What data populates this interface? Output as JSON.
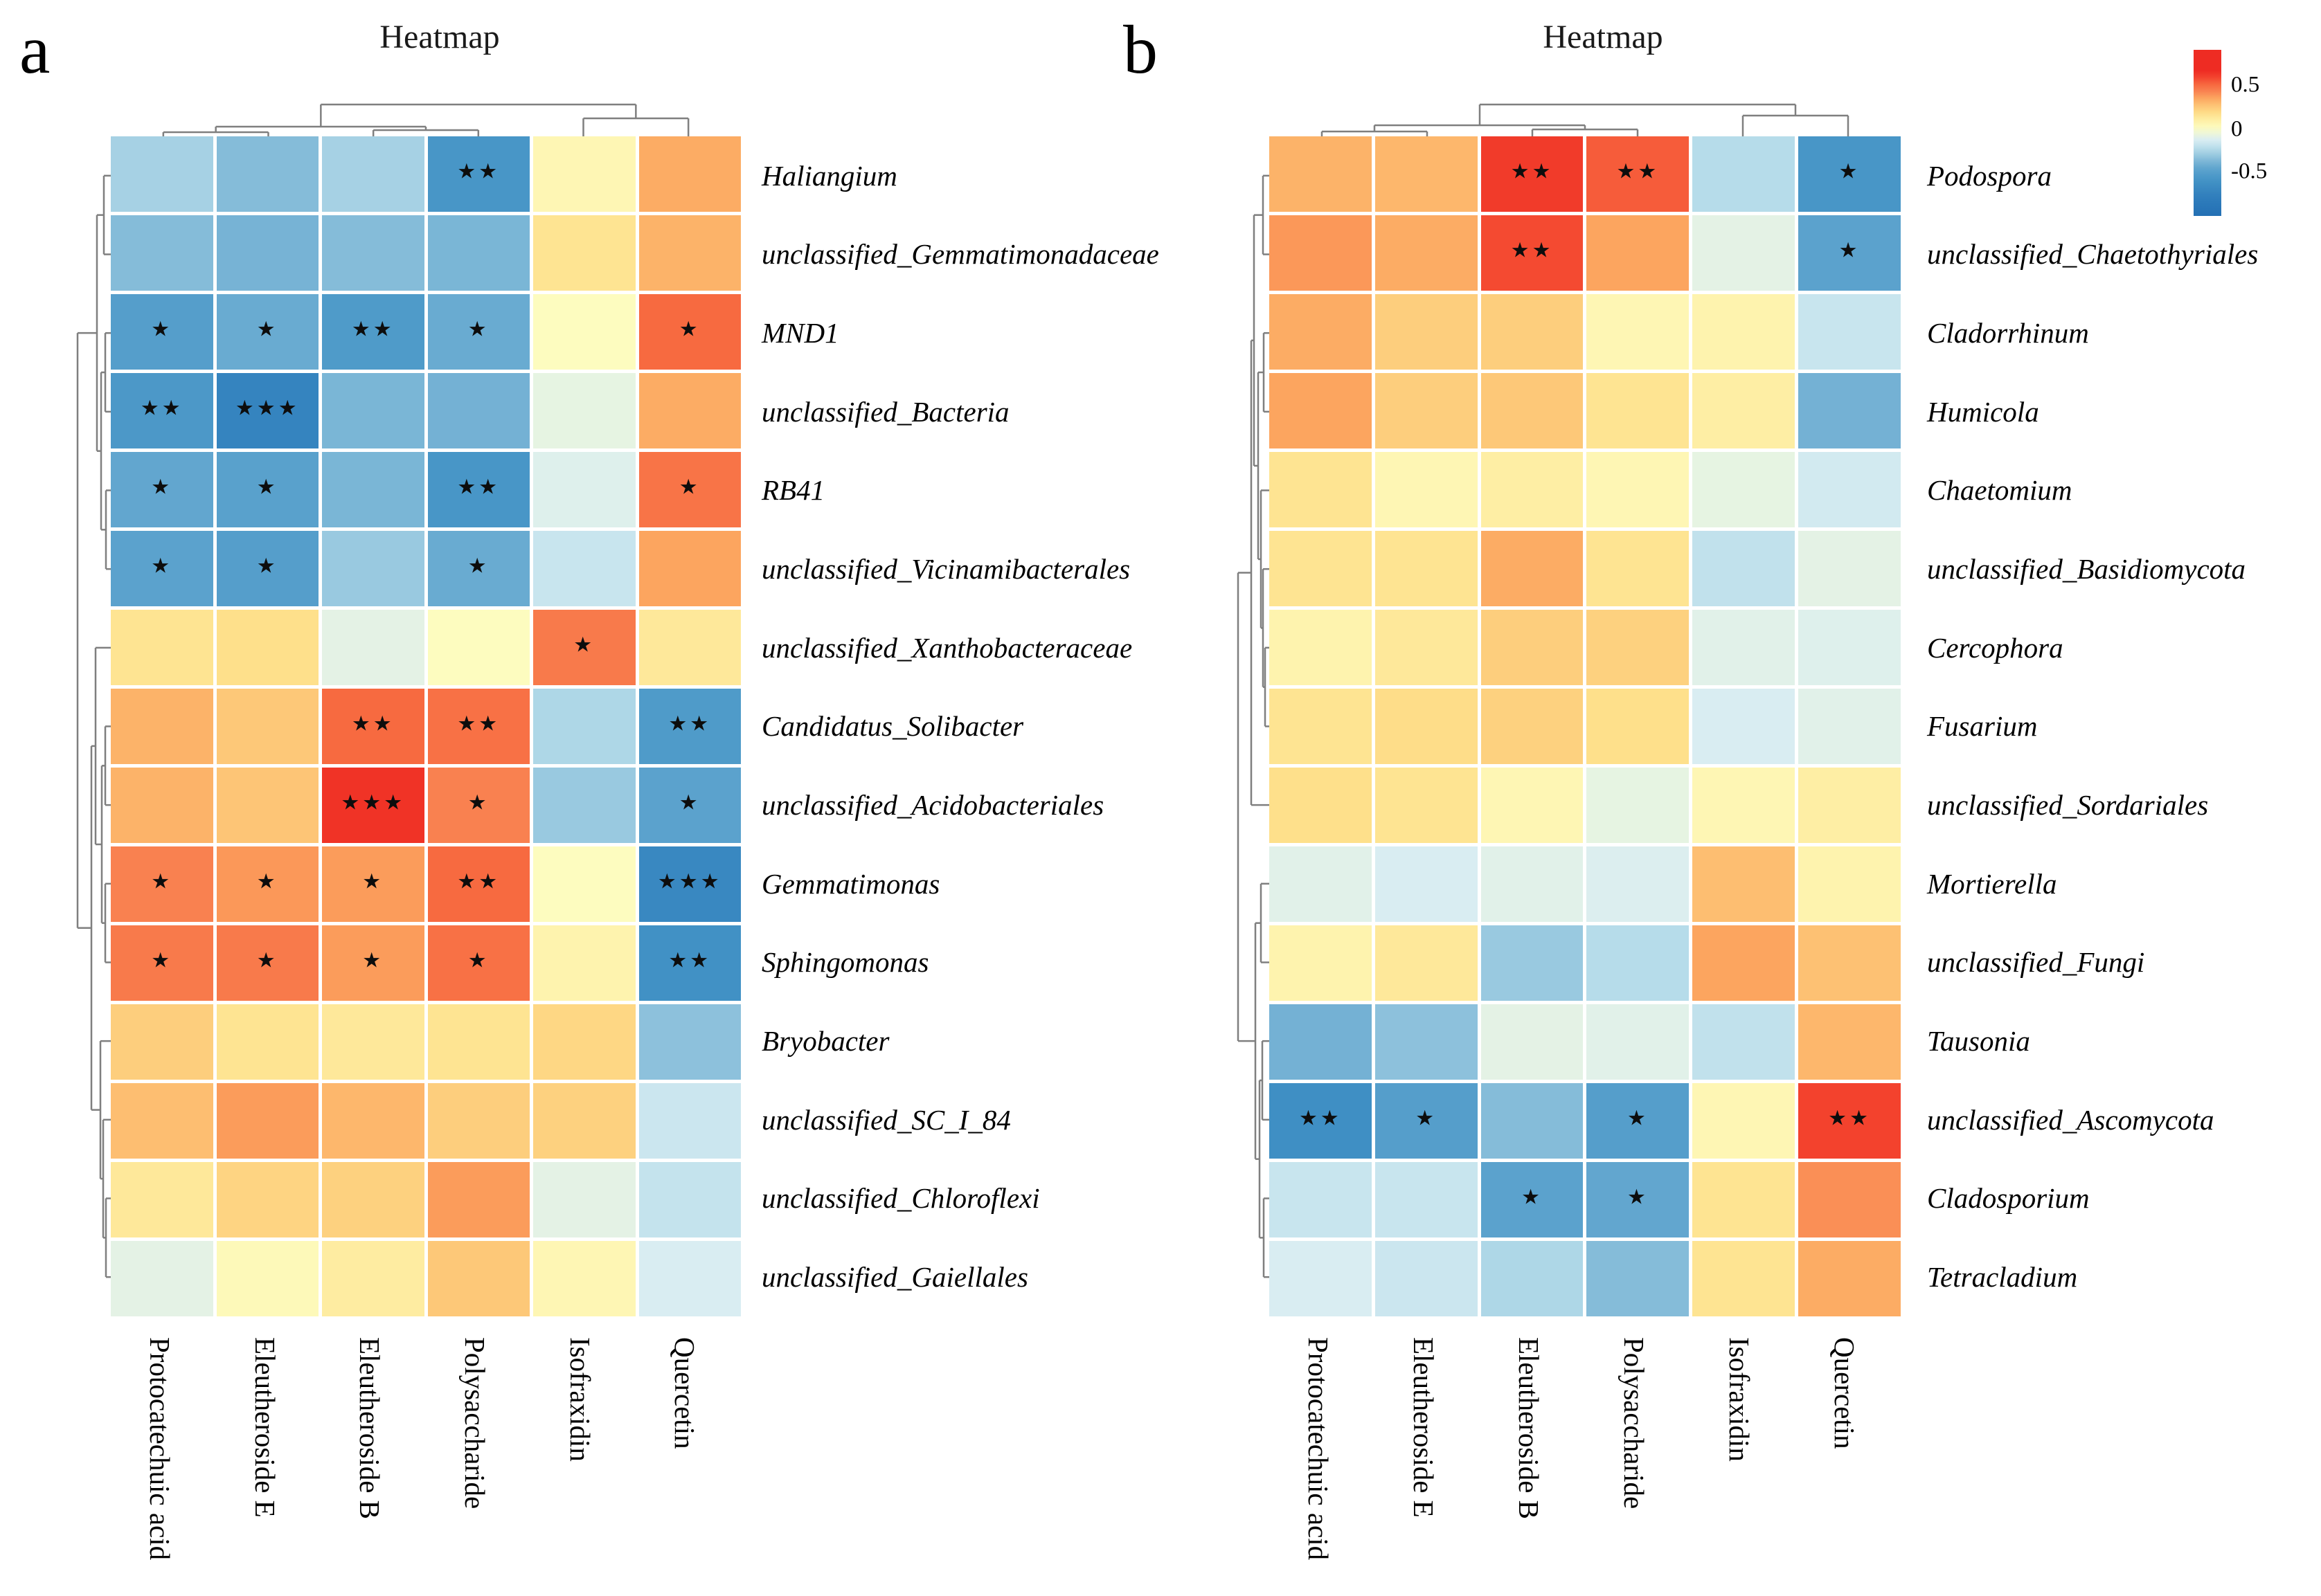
{
  "figure": {
    "panel_a_label": "a",
    "panel_b_label": "b"
  },
  "legend": {
    "ticks": [
      {
        "label": "0.5",
        "value": 0.5
      },
      {
        "label": "0",
        "value": 0
      },
      {
        "label": "-0.5",
        "value": -0.5
      }
    ],
    "vmin": -0.95,
    "vmax": 0.95
  },
  "colormap": [
    [
      -0.95,
      "#2470b4"
    ],
    [
      -0.75,
      "#2e7cbb"
    ],
    [
      -0.55,
      "#4292c5"
    ],
    [
      -0.42,
      "#5ba2cd"
    ],
    [
      -0.3,
      "#85bcd9"
    ],
    [
      -0.18,
      "#b6dcea"
    ],
    [
      -0.08,
      "#d9edf2"
    ],
    [
      -0.02,
      "#e9f5df"
    ],
    [
      0.05,
      "#fdfdc2"
    ],
    [
      0.14,
      "#fef0a8"
    ],
    [
      0.22,
      "#fee08b"
    ],
    [
      0.3,
      "#fdc878"
    ],
    [
      0.4,
      "#fca55f"
    ],
    [
      0.48,
      "#f98150"
    ],
    [
      0.55,
      "#f76a40"
    ],
    [
      0.62,
      "#f44a31"
    ],
    [
      0.7,
      "#ee2c23"
    ],
    [
      0.95,
      "#ee2c23"
    ]
  ],
  "chart_data": [
    {
      "type": "heatmap",
      "panel": "a",
      "title": "Heatmap",
      "columns": [
        "Protocatechuic acid",
        "Eleutheroside E",
        "Eleutheroside B",
        "Polysaccharide",
        "Isofraxidin",
        "Quercetin"
      ],
      "rows": [
        "Haliangium",
        "unclassified_Gemmatimonadaceae",
        "MND1",
        "unclassified_Bacteria",
        "RB41",
        "unclassified_Vicinamibacterales",
        "unclassified_Xanthobacteraceae",
        "Candidatus_Solibacter",
        "unclassified_Acidobacteriales",
        "Gemmatimonas",
        "Sphingomonas",
        "Bryobacter",
        "unclassified_SC_I_84",
        "unclassified_Chloroflexi",
        "unclassified_Gaiellales"
      ],
      "values": [
        [
          -0.22,
          -0.3,
          -0.22,
          -0.52,
          0.1,
          0.38
        ],
        [
          -0.3,
          -0.34,
          -0.3,
          -0.33,
          0.2,
          0.36
        ],
        [
          -0.45,
          -0.38,
          -0.48,
          -0.38,
          0.06,
          0.55
        ],
        [
          -0.5,
          -0.68,
          -0.33,
          -0.35,
          -0.03,
          0.38
        ],
        [
          -0.4,
          -0.43,
          -0.33,
          -0.52,
          -0.06,
          0.52
        ],
        [
          -0.42,
          -0.45,
          -0.25,
          -0.38,
          -0.13,
          0.4
        ],
        [
          0.2,
          0.22,
          -0.04,
          0.06,
          0.5,
          0.18
        ],
        [
          0.36,
          0.3,
          0.55,
          0.53,
          -0.2,
          -0.48
        ],
        [
          0.36,
          0.31,
          0.68,
          0.48,
          -0.25,
          -0.42
        ],
        [
          0.48,
          0.43,
          0.42,
          0.55,
          0.06,
          -0.64
        ],
        [
          0.5,
          0.5,
          0.42,
          0.53,
          0.12,
          -0.56
        ],
        [
          0.28,
          0.2,
          0.18,
          0.2,
          0.25,
          -0.28
        ],
        [
          0.33,
          0.42,
          0.35,
          0.28,
          0.27,
          -0.12
        ],
        [
          0.18,
          0.26,
          0.27,
          0.42,
          -0.04,
          -0.14
        ],
        [
          -0.04,
          0.08,
          0.16,
          0.3,
          0.1,
          -0.08
        ]
      ],
      "significance": [
        [
          null,
          null,
          null,
          "**",
          null,
          null
        ],
        [
          null,
          null,
          null,
          null,
          null,
          null
        ],
        [
          "*",
          "*",
          "**",
          "*",
          null,
          "*"
        ],
        [
          "**",
          "***",
          null,
          null,
          null,
          null
        ],
        [
          "*",
          "*",
          null,
          "**",
          null,
          "*"
        ],
        [
          "*",
          "*",
          null,
          "*",
          null,
          null
        ],
        [
          null,
          null,
          null,
          null,
          "*",
          null
        ],
        [
          null,
          null,
          "**",
          "**",
          null,
          "**"
        ],
        [
          null,
          null,
          "***",
          "*",
          null,
          "*"
        ],
        [
          "*",
          "*",
          "*",
          "**",
          null,
          "***"
        ],
        [
          "*",
          "*",
          "*",
          "*",
          null,
          "**"
        ],
        [
          null,
          null,
          null,
          null,
          null,
          null
        ],
        [
          null,
          null,
          null,
          null,
          null,
          null
        ],
        [
          null,
          null,
          null,
          null,
          null,
          null
        ],
        [
          null,
          null,
          null,
          null,
          null,
          null
        ]
      ],
      "col_dendrogram": [
        46,
        [
          14,
          [
            6,
            0,
            1
          ],
          [
            9,
            2,
            3
          ]
        ],
        [
          26,
          4,
          5
        ]
      ],
      "row_dendrogram": [
        48,
        [
          20,
          [
            10,
            0,
            1
          ],
          [
            14,
            [
              8,
              2,
              3
            ],
            [
              7,
              4,
              5
            ]
          ]
        ],
        [
          28,
          [
            22,
            6,
            [
              13,
              [
                8,
                7,
                8
              ],
              [
                8,
                9,
                10
              ]
            ]
          ],
          [
            15,
            11,
            [
              11,
              12,
              [
                7,
                13,
                14
              ]
            ]
          ]
        ]
      ]
    },
    {
      "type": "heatmap",
      "panel": "b",
      "title": "Heatmap",
      "columns": [
        "Protocatechuic acid",
        "Eleutheroside E",
        "Eleutheroside B",
        "Polysaccharide",
        "Isofraxidin",
        "Quercetin"
      ],
      "rows": [
        "Podospora",
        "unclassified_Chaetothyriales",
        "Cladorrhinum",
        "Humicola",
        "Chaetomium",
        "unclassified_Basidiomycota",
        "Cercophora",
        "Fusarium",
        "unclassified_Sordariales",
        "Mortierella",
        "unclassified_Fungi",
        "Tausonia",
        "unclassified_Ascomycota",
        "Cladosporium",
        "Tetracladium"
      ],
      "values": [
        [
          0.36,
          0.35,
          0.66,
          0.58,
          -0.18,
          -0.52
        ],
        [
          0.43,
          0.38,
          0.62,
          0.4,
          -0.04,
          -0.42
        ],
        [
          0.38,
          0.28,
          0.28,
          0.1,
          0.12,
          -0.13
        ],
        [
          0.4,
          0.28,
          0.3,
          0.2,
          0.15,
          -0.35
        ],
        [
          0.2,
          0.1,
          0.15,
          0.1,
          -0.03,
          -0.1
        ],
        [
          0.2,
          0.2,
          0.38,
          0.2,
          -0.15,
          -0.04
        ],
        [
          0.12,
          0.18,
          0.28,
          0.27,
          -0.05,
          -0.06
        ],
        [
          0.2,
          0.23,
          0.27,
          0.22,
          -0.08,
          -0.05
        ],
        [
          0.22,
          0.2,
          0.1,
          -0.03,
          0.1,
          0.15
        ],
        [
          -0.05,
          -0.08,
          -0.05,
          -0.07,
          0.33,
          0.12
        ],
        [
          0.12,
          0.18,
          -0.25,
          -0.18,
          0.4,
          0.32
        ],
        [
          -0.35,
          -0.28,
          -0.04,
          -0.05,
          -0.15,
          0.35
        ],
        [
          -0.58,
          -0.45,
          -0.3,
          -0.45,
          0.1,
          0.64
        ],
        [
          -0.13,
          -0.13,
          -0.42,
          -0.4,
          0.2,
          0.45
        ],
        [
          -0.08,
          -0.12,
          -0.2,
          -0.3,
          0.2,
          0.38
        ]
      ],
      "significance": [
        [
          null,
          null,
          "**",
          "**",
          null,
          "*"
        ],
        [
          null,
          null,
          "**",
          null,
          null,
          "*"
        ],
        [
          null,
          null,
          null,
          null,
          null,
          null
        ],
        [
          null,
          null,
          null,
          null,
          null,
          null
        ],
        [
          null,
          null,
          null,
          null,
          null,
          null
        ],
        [
          null,
          null,
          null,
          null,
          null,
          null
        ],
        [
          null,
          null,
          null,
          null,
          null,
          null
        ],
        [
          null,
          null,
          null,
          null,
          null,
          null
        ],
        [
          null,
          null,
          null,
          null,
          null,
          null
        ],
        [
          null,
          null,
          null,
          null,
          null,
          null
        ],
        [
          null,
          null,
          null,
          null,
          null,
          null
        ],
        [
          null,
          null,
          null,
          null,
          null,
          null
        ],
        [
          "**",
          "*",
          null,
          "*",
          null,
          "**"
        ],
        [
          null,
          null,
          "*",
          "*",
          null,
          null
        ],
        [
          null,
          null,
          null,
          null,
          null,
          null
        ]
      ],
      "col_dendrogram": [
        46,
        [
          16,
          [
            7,
            0,
            1
          ],
          [
            10,
            2,
            3
          ]
        ],
        [
          30,
          4,
          5
        ]
      ],
      "row_dendrogram": [
        45,
        [
          26,
          [
            22,
            [
              9,
              0,
              1
            ],
            [
              16,
              [
                8,
                2,
                3
              ],
              [
                12,
                4,
                [
                  9,
                  5,
                  [
                    6,
                    6,
                    7
                  ]
                ]
              ]
            ]
          ],
          8
        ],
        [
          20,
          [
            12,
            9,
            10
          ],
          [
            14,
            [
              10,
              11,
              12
            ],
            [
              8,
              13,
              14
            ]
          ]
        ]
      ]
    }
  ]
}
